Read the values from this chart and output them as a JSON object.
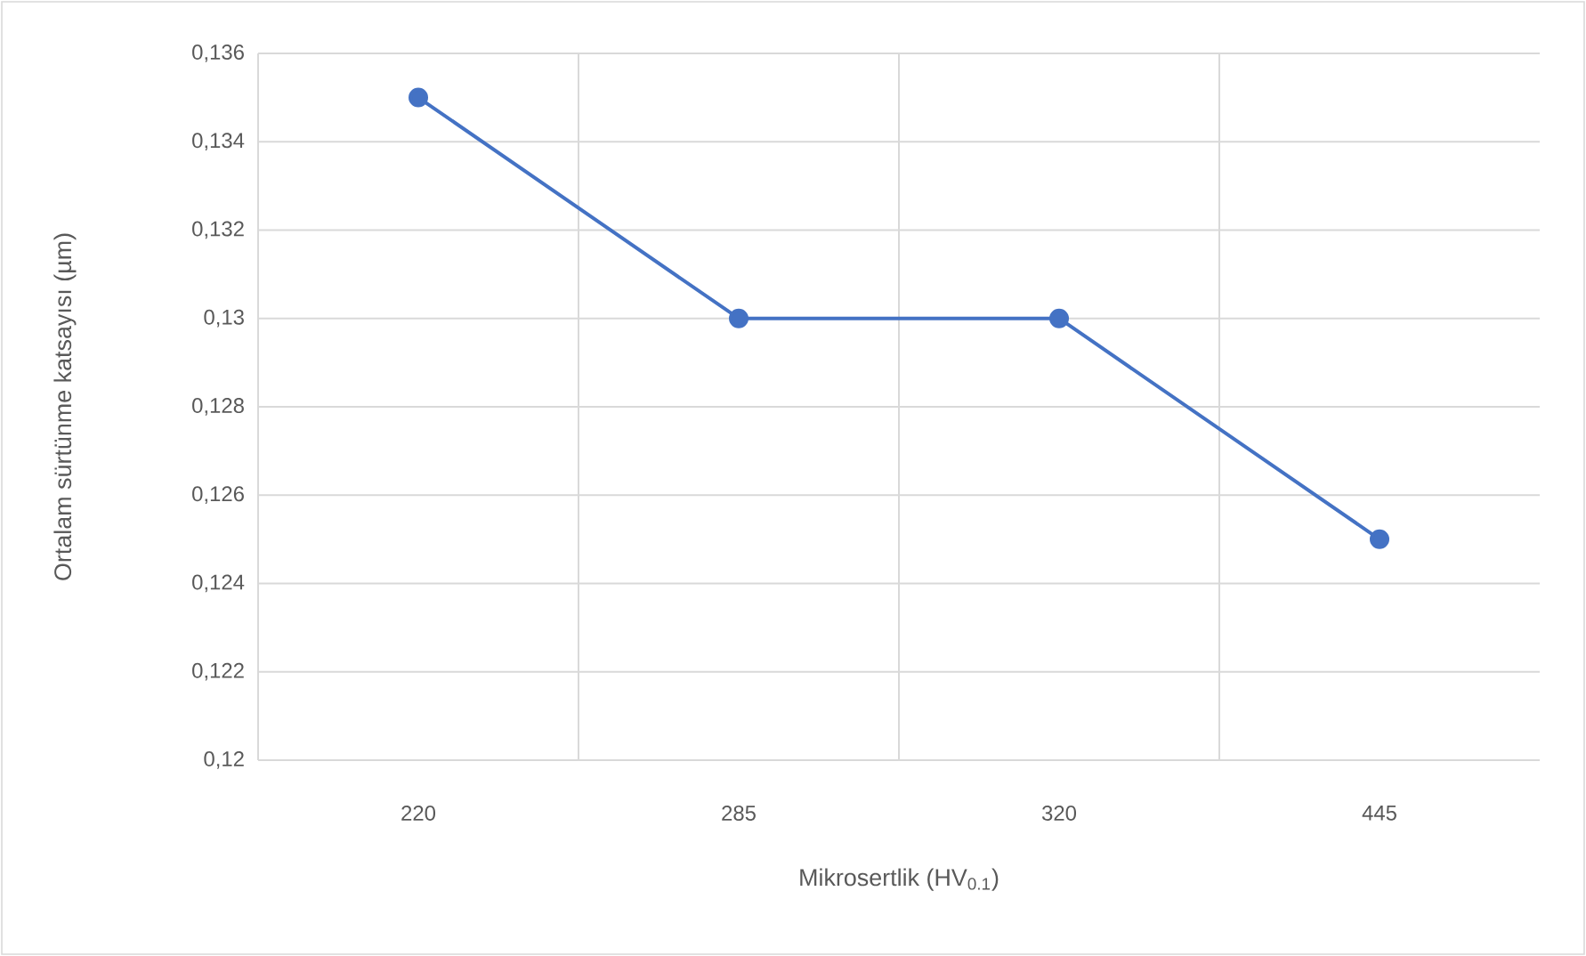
{
  "chart_data": {
    "type": "line",
    "xlabel": "Mikrosertlik (HV$_{0.1}$)",
    "ylabel": "Ortalam sürtünme katsayısı (µm)",
    "categories": [
      "220",
      "285",
      "320",
      "445"
    ],
    "series": [
      {
        "color": "#4472c4",
        "values": [
          0.135,
          0.13,
          0.13,
          0.125
        ]
      }
    ],
    "ylim": [
      0.12,
      0.136
    ],
    "yticks": [
      {
        "value": 0.12,
        "label": "0,12"
      },
      {
        "value": 0.122,
        "label": "0,122"
      },
      {
        "value": 0.124,
        "label": "0,124"
      },
      {
        "value": 0.126,
        "label": "0,126"
      },
      {
        "value": 0.128,
        "label": "0,128"
      },
      {
        "value": 0.13,
        "label": "0,13"
      },
      {
        "value": 0.132,
        "label": "0,132"
      },
      {
        "value": 0.134,
        "label": "0,134"
      },
      {
        "value": 0.136,
        "label": "0,136"
      }
    ],
    "grid": true,
    "marker": "circle",
    "line_style": "solid"
  }
}
